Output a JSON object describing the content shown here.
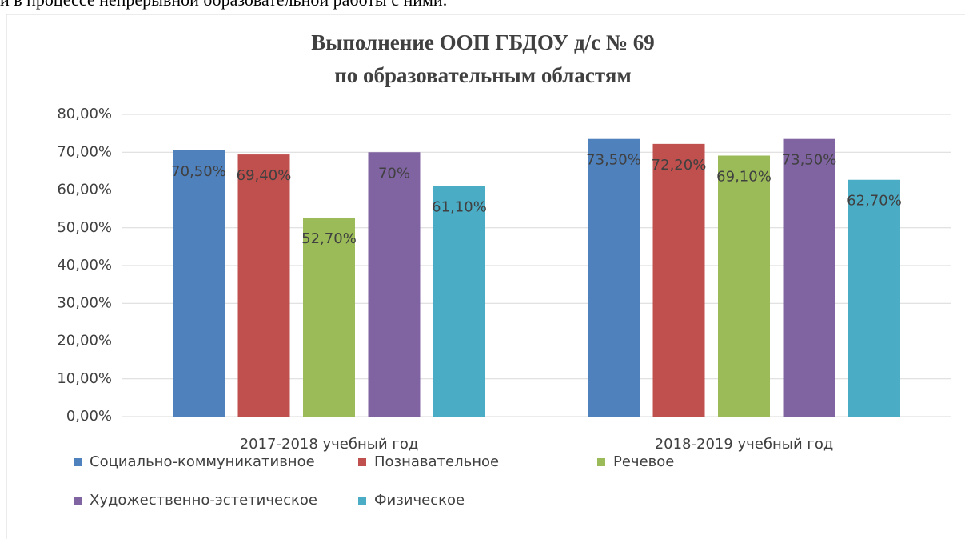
{
  "caption": "и в процессе непрерывной образовательной работы с ними.",
  "chart_data": {
    "type": "bar",
    "title": [
      "Выполнение ООП ГБДОУ д/с № 69",
      "по образовательным областям"
    ],
    "categories": [
      "2017-2018 учебный год",
      "2018-2019 учебный год"
    ],
    "series": [
      {
        "name": "Социально-коммуникативное",
        "color": "#4f81bd",
        "values": [
          70.5,
          73.5
        ],
        "value_labels": [
          "70,50%",
          "73,50%"
        ]
      },
      {
        "name": "Познавательное",
        "color": "#c0504d",
        "values": [
          69.4,
          72.2
        ],
        "value_labels": [
          "69,40%",
          "72,20%"
        ]
      },
      {
        "name": "Речевое",
        "color": "#9bbb59",
        "values": [
          52.7,
          69.1
        ],
        "value_labels": [
          "52,70%",
          "69,10%"
        ]
      },
      {
        "name": "Художественно-эстетическое",
        "color": "#8064a2",
        "values": [
          70,
          73.5
        ],
        "value_labels": [
          "70%",
          "73,50%"
        ]
      },
      {
        "name": "Физическое",
        "color": "#4bacc6",
        "values": [
          61.1,
          62.7
        ],
        "value_labels": [
          "61,10%",
          "62,70%"
        ]
      }
    ],
    "ylim": [
      0,
      80
    ],
    "yticks": [
      {
        "value": 0,
        "label": "0,00%"
      },
      {
        "value": 10,
        "label": "10,00%"
      },
      {
        "value": 20,
        "label": "20,00%"
      },
      {
        "value": 30,
        "label": "30,00%"
      },
      {
        "value": 40,
        "label": "40,00%"
      },
      {
        "value": 50,
        "label": "50,00%"
      },
      {
        "value": 60,
        "label": "60,00%"
      },
      {
        "value": 70,
        "label": "70,00%"
      },
      {
        "value": 80,
        "label": "80,00%"
      }
    ],
    "grid": true,
    "legend": "bottom"
  }
}
